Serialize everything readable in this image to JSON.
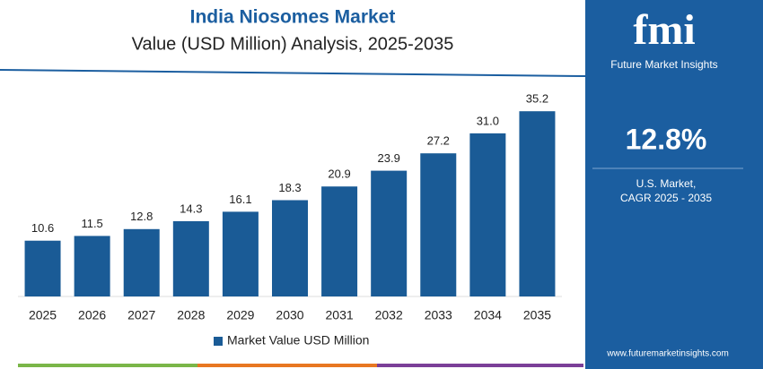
{
  "chart_data": {
    "type": "bar",
    "title": "India Niosomes Market",
    "subtitle": "Value (USD Million) Analysis, 2025-2035",
    "categories": [
      "2025",
      "2026",
      "2027",
      "2028",
      "2029",
      "2030",
      "2031",
      "2032",
      "2033",
      "2034",
      "2035"
    ],
    "series": [
      {
        "name": "Market Value USD Million",
        "color": "#1a5b96",
        "values": [
          10.6,
          11.5,
          12.8,
          14.3,
          16.1,
          18.3,
          20.9,
          23.9,
          27.2,
          31.0,
          35.2
        ],
        "value_labels": [
          "10.6",
          "11.5",
          "12.8",
          "14.3",
          "16.1",
          "18.3",
          "20.9",
          "23.9",
          "27.2",
          "31.0",
          "35.2"
        ]
      }
    ],
    "ylim": [
      0,
      40
    ]
  },
  "panel": {
    "brand": "fmi",
    "brand_sub": "Future Market Insights",
    "stat": "12.8%",
    "stat_label_1": "U.S. Market,",
    "stat_label_2": "CAGR 2025 - 2035",
    "url": "www.futuremarketinsights.com"
  }
}
